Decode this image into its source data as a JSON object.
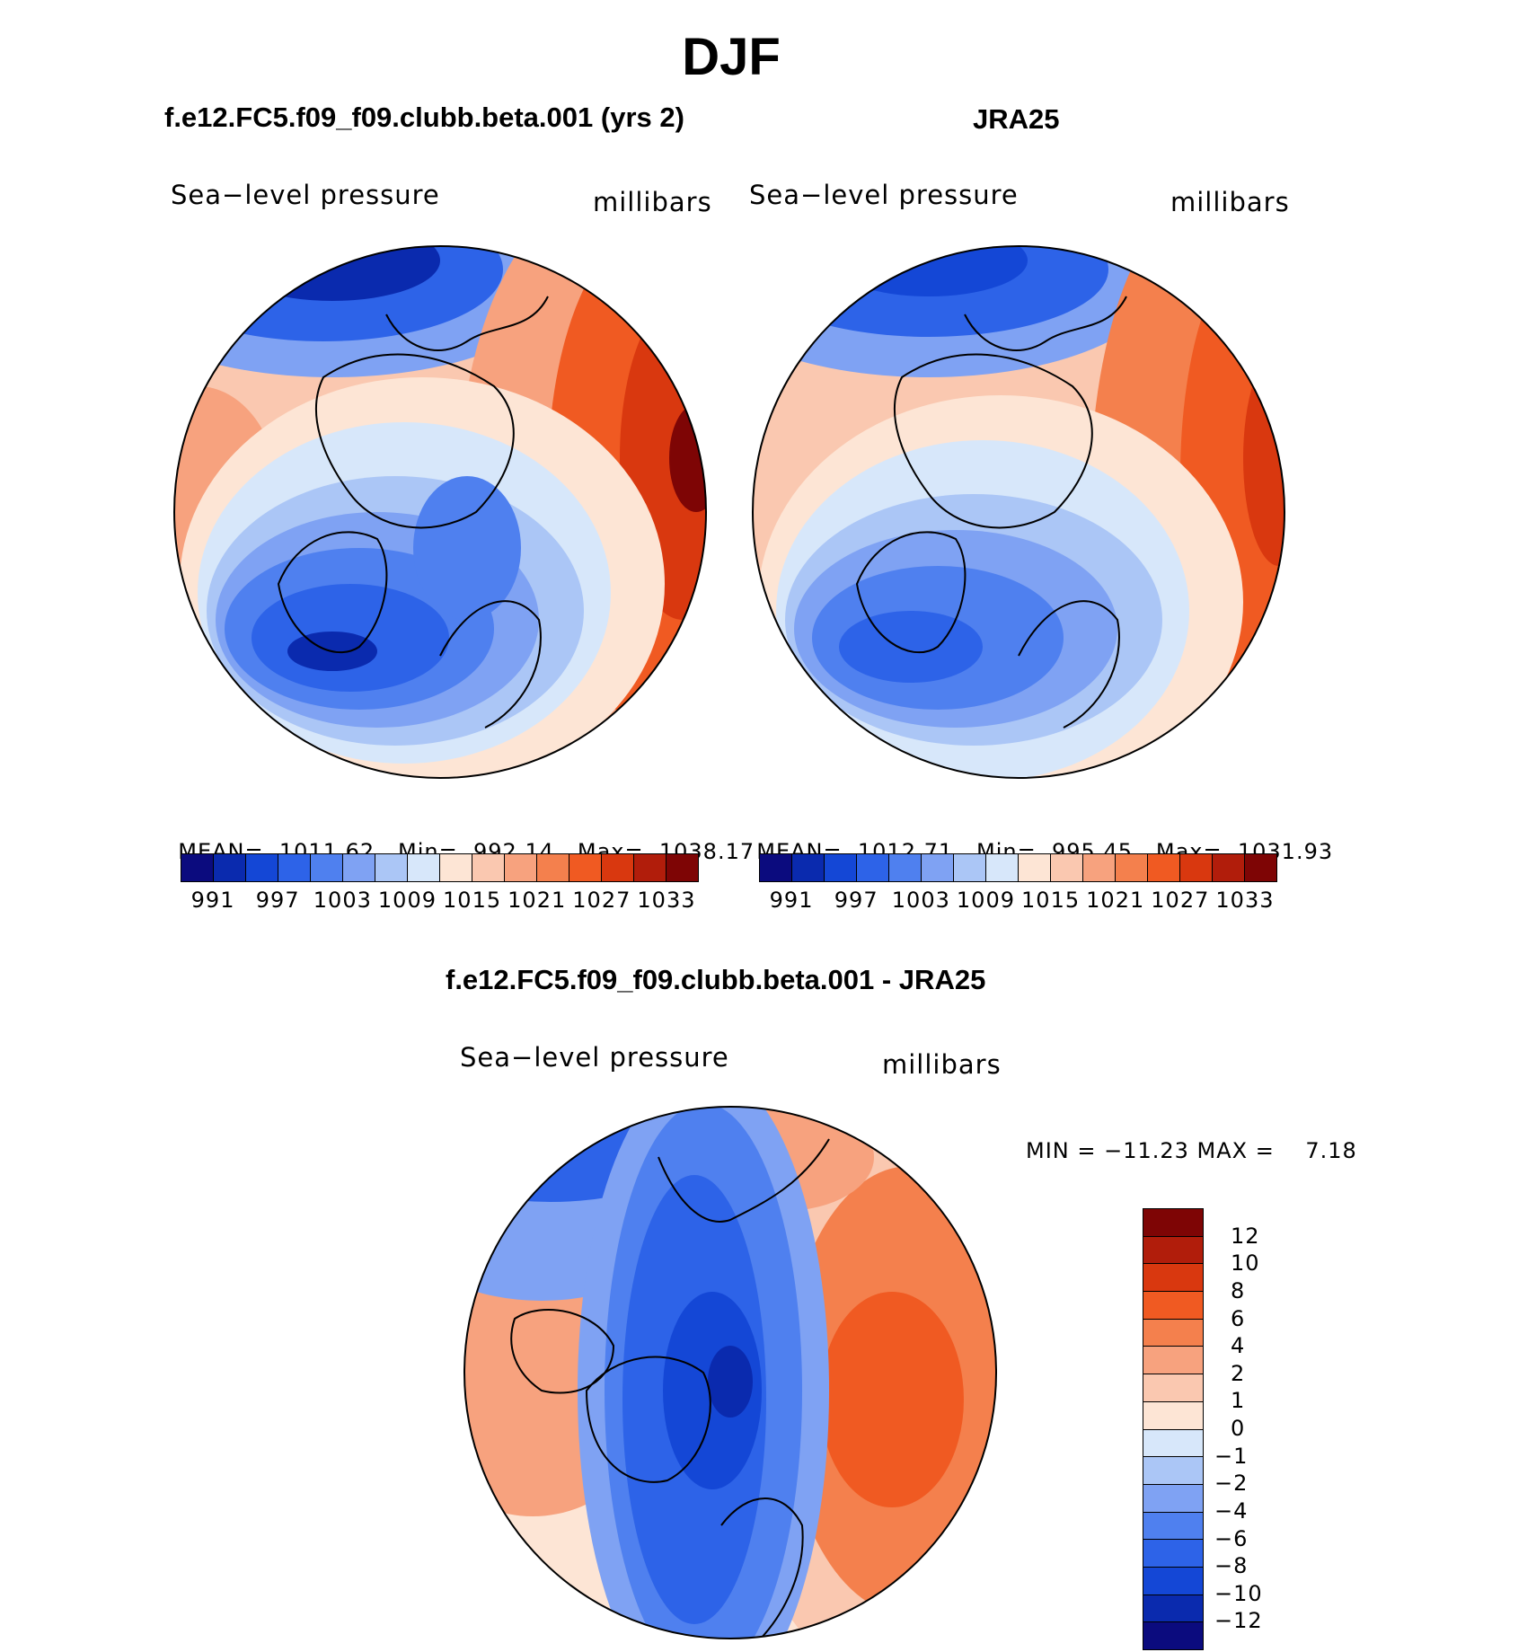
{
  "title": "DJF",
  "panels": [
    {
      "title": "f.e12.FC5.f09_f09.clubb.beta.001 (yrs 2)",
      "variable": "Sea−level pressure",
      "units": "millibars",
      "mean_label": "MEAN=",
      "mean": "1011.62",
      "min_label": "Min=",
      "min": "992.14",
      "max_label": "Max=",
      "max": "1038.17"
    },
    {
      "title": "JRA25",
      "variable": "Sea−level pressure",
      "units": "millibars",
      "mean_label": "MEAN=",
      "mean": "1012.71",
      "min_label": "Min=",
      "min": "995.45",
      "max_label": "Max=",
      "max": "1031.93"
    }
  ],
  "abs_colorbar": {
    "labels": [
      "991",
      "997",
      "1003",
      "1009",
      "1015",
      "1021",
      "1027",
      "1033"
    ],
    "colors": [
      "#0b0b7e",
      "#0a2aae",
      "#1447d6",
      "#2d63e8",
      "#4f80ef",
      "#7fa2f3",
      "#abc6f6",
      "#d7e7fa",
      "#fde5d5",
      "#fac8b0",
      "#f7a27e",
      "#f4804d",
      "#f05a22",
      "#d9380f",
      "#b11d0b",
      "#7e0505"
    ]
  },
  "difference": {
    "title": "f.e12.FC5.f09_f09.clubb.beta.001 - JRA25",
    "variable": "Sea−level pressure",
    "units": "millibars",
    "stats": "MIN = −11.23 MAX =    7.18",
    "colorbar_labels": [
      "12",
      "10",
      "8",
      "6",
      "4",
      "2",
      "1",
      "0",
      "−1",
      "−2",
      "−4",
      "−6",
      "−8",
      "−10",
      "−12"
    ],
    "colorbar_colors": [
      "#7e0505",
      "#b11d0b",
      "#d9380f",
      "#f05a22",
      "#f4804d",
      "#f7a27e",
      "#fac8b0",
      "#fde5d5",
      "#d7e7fa",
      "#abc6f6",
      "#7fa2f3",
      "#4f80ef",
      "#2d63e8",
      "#1447d6",
      "#0a2aae",
      "#0b0b7e"
    ]
  }
}
